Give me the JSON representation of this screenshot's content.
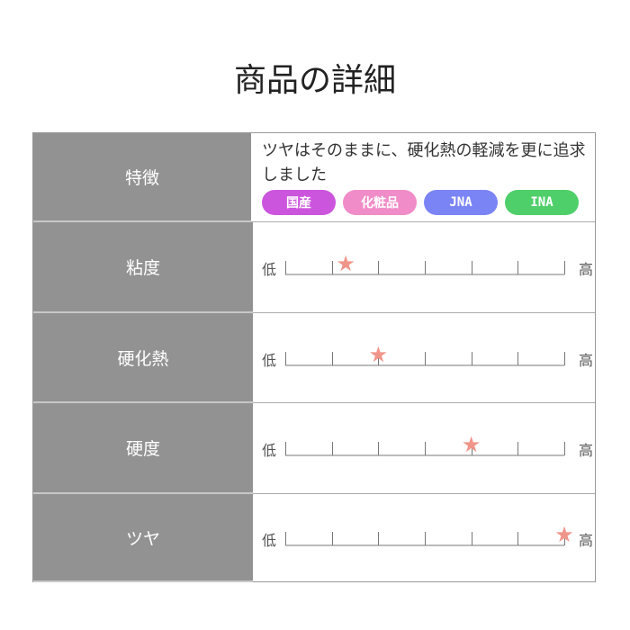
{
  "title": "商品の詳細",
  "rows": [
    {
      "label": "特徴",
      "description": "ツヤはそのままに、硬化熱の軽減を更に追求しました",
      "tags": [
        {
          "label": "国産",
          "color": "#cc55dd"
        },
        {
          "label": "化粧品",
          "color": "#f08cc8"
        },
        {
          "label": "JNA",
          "color": "#7b84f5"
        },
        {
          "label": "INA",
          "color": "#4fcf6a"
        }
      ]
    },
    {
      "label": "粘度",
      "value": 1.3
    },
    {
      "label": "硬化熱",
      "value": 2
    },
    {
      "label": "硬度",
      "value": 4
    },
    {
      "label": "ツヤ",
      "value": 6
    }
  ],
  "scale": {
    "low": "低",
    "high": "高",
    "max": 6
  },
  "colors": {
    "label_bg": "#929292",
    "star": "#f0958a"
  }
}
